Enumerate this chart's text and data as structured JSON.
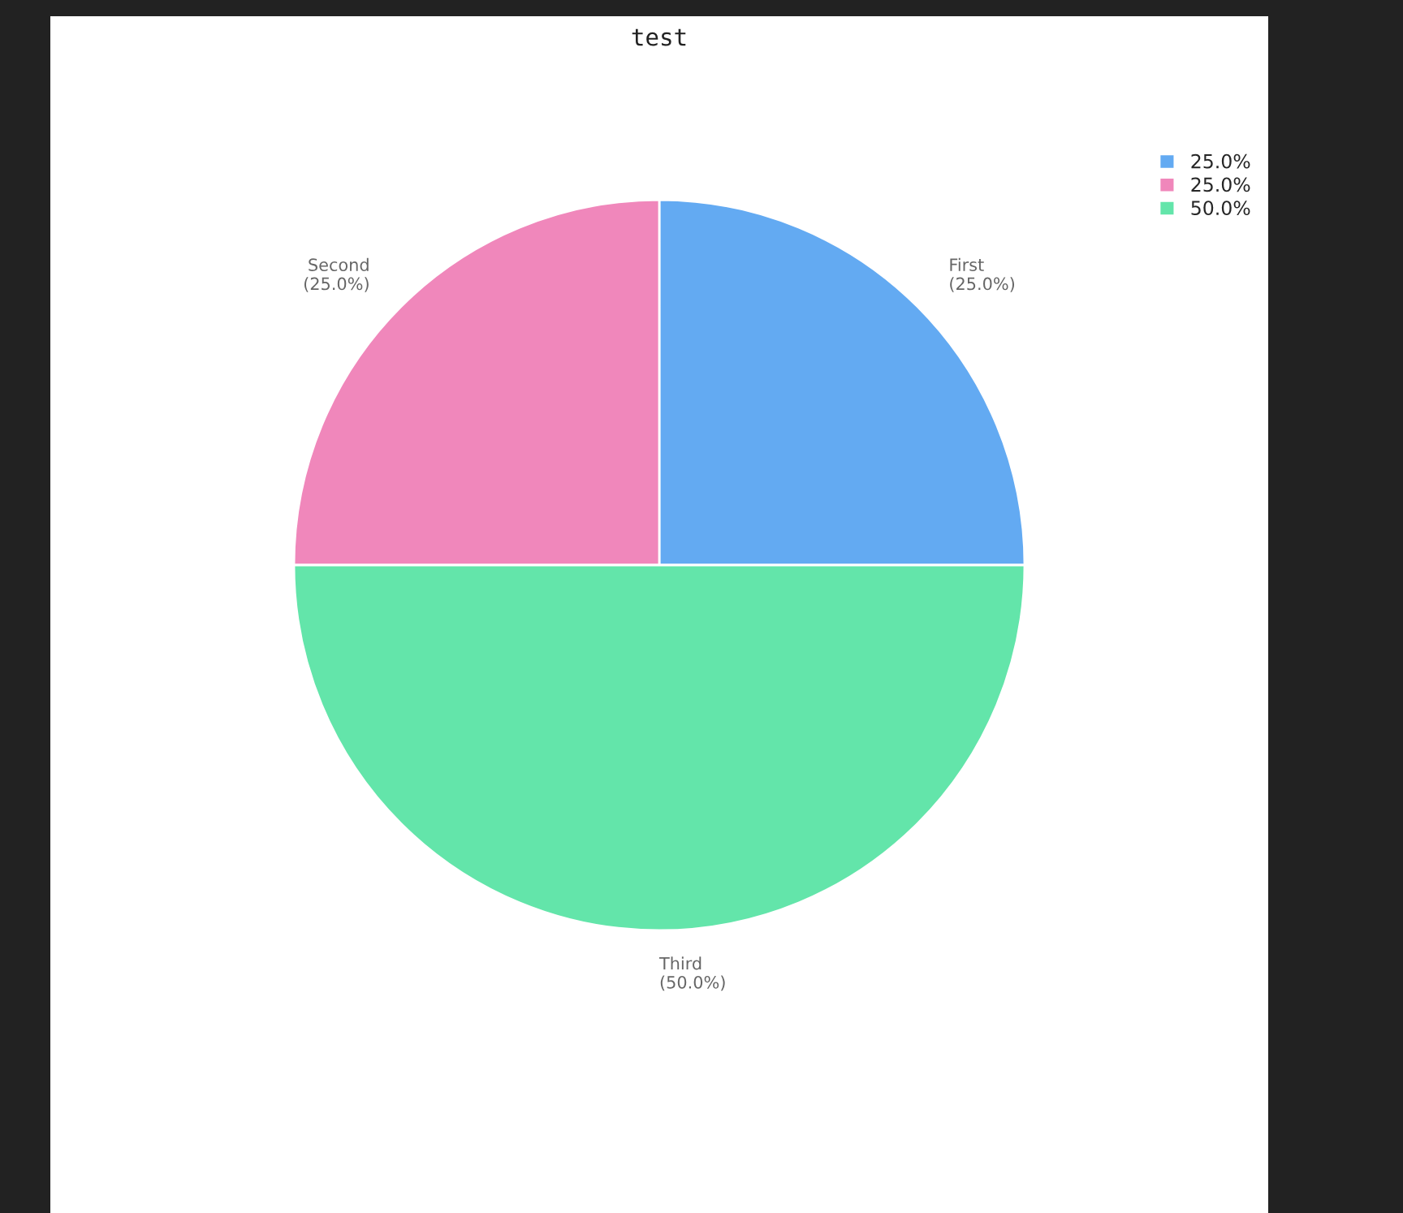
{
  "chart_data": {
    "type": "pie",
    "title": "test",
    "categories": [
      "First",
      "Second",
      "Third"
    ],
    "values": [
      25,
      25,
      50
    ],
    "value_labels": [
      "(25.0%)",
      "(25.0%)",
      "(50.0%)"
    ],
    "colors": [
      "#63aaf2",
      "#f087bb",
      "#63e5aa"
    ],
    "annotations": [
      "25.0%",
      "25.0%",
      "50.0%"
    ]
  }
}
